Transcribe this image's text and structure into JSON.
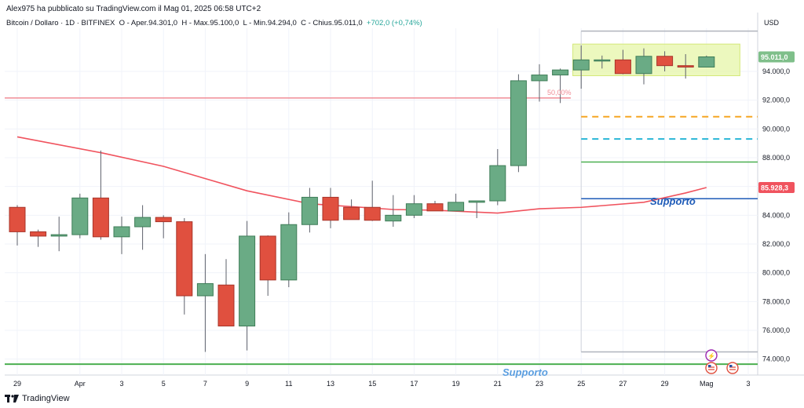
{
  "header": {
    "published": "Alex975 ha pubblicato su TradingView.com il Mag 01, 2025 06:58 UTC+2"
  },
  "legend": {
    "symbol": "Bitcoin / Dollaro · 1D · BITFINEX",
    "open": "O - Aper.94.301,0",
    "high": "H - Max.95.100,0",
    "low": "L - Min.94.294,0",
    "close": "C - Chius.95.011,0",
    "change": "+702,0 (+0,74%)"
  },
  "footer": {
    "brand": "TradingView"
  },
  "chart_data": {
    "type": "candlestick",
    "currency_label": "USD",
    "ylim": [
      73000,
      97500
    ],
    "yticks": [
      74000,
      76000,
      78000,
      80000,
      82000,
      84000,
      86000,
      88000,
      90000,
      92000,
      94000
    ],
    "ytick_labels": [
      "74.000,0",
      "76.000,0",
      "78.000,0",
      "80.000,0",
      "82.000,0",
      "84.000,0",
      "86.000,0",
      "88.000,0",
      "90.000,0",
      "92.000,0",
      "94.000,0"
    ],
    "xticks": [
      {
        "i": 0,
        "label": "29"
      },
      {
        "i": 3,
        "label": "Apr"
      },
      {
        "i": 5,
        "label": "3"
      },
      {
        "i": 7,
        "label": "5"
      },
      {
        "i": 9,
        "label": "7"
      },
      {
        "i": 11,
        "label": "9"
      },
      {
        "i": 13,
        "label": "11"
      },
      {
        "i": 15,
        "label": "13"
      },
      {
        "i": 17,
        "label": "15"
      },
      {
        "i": 19,
        "label": "17"
      },
      {
        "i": 21,
        "label": "19"
      },
      {
        "i": 23,
        "label": "21"
      },
      {
        "i": 25,
        "label": "23"
      },
      {
        "i": 27,
        "label": "25"
      },
      {
        "i": 29,
        "label": "27"
      },
      {
        "i": 31,
        "label": "29"
      },
      {
        "i": 33,
        "label": "Mag"
      },
      {
        "i": 35,
        "label": "3"
      }
    ],
    "candles": [
      {
        "o": 84550,
        "h": 84700,
        "l": 81900,
        "c": 82850
      },
      {
        "o": 82850,
        "h": 83000,
        "l": 81800,
        "c": 82550
      },
      {
        "o": 82550,
        "h": 83900,
        "l": 81500,
        "c": 82650
      },
      {
        "o": 82650,
        "h": 85500,
        "l": 82400,
        "c": 85200
      },
      {
        "o": 85200,
        "h": 88500,
        "l": 82300,
        "c": 82500
      },
      {
        "o": 82500,
        "h": 83900,
        "l": 81300,
        "c": 83200
      },
      {
        "o": 83200,
        "h": 84700,
        "l": 81600,
        "c": 83850
      },
      {
        "o": 83850,
        "h": 84000,
        "l": 82400,
        "c": 83550
      },
      {
        "o": 83550,
        "h": 83800,
        "l": 77100,
        "c": 78400
      },
      {
        "o": 78400,
        "h": 81300,
        "l": 74500,
        "c": 79250
      },
      {
        "o": 79150,
        "h": 80950,
        "l": 76300,
        "c": 76300
      },
      {
        "o": 76300,
        "h": 83600,
        "l": 74600,
        "c": 82550
      },
      {
        "o": 82550,
        "h": 82600,
        "l": 78400,
        "c": 79500
      },
      {
        "o": 79500,
        "h": 84200,
        "l": 79000,
        "c": 83350
      },
      {
        "o": 83350,
        "h": 85900,
        "l": 82800,
        "c": 85250
      },
      {
        "o": 85250,
        "h": 85900,
        "l": 83100,
        "c": 83650
      },
      {
        "o": 84550,
        "h": 85100,
        "l": 83700,
        "c": 83700
      },
      {
        "o": 84550,
        "h": 86400,
        "l": 83600,
        "c": 83650
      },
      {
        "o": 83600,
        "h": 85400,
        "l": 83200,
        "c": 84000
      },
      {
        "o": 84000,
        "h": 85400,
        "l": 83800,
        "c": 84800
      },
      {
        "o": 84800,
        "h": 85000,
        "l": 84300,
        "c": 84300
      },
      {
        "o": 84300,
        "h": 85500,
        "l": 84300,
        "c": 84900
      },
      {
        "o": 84900,
        "h": 85000,
        "l": 83800,
        "c": 85000
      },
      {
        "o": 85000,
        "h": 88600,
        "l": 84700,
        "c": 87450
      },
      {
        "o": 87450,
        "h": 93800,
        "l": 87000,
        "c": 93350
      },
      {
        "o": 93350,
        "h": 94500,
        "l": 91900,
        "c": 93750
      },
      {
        "o": 93750,
        "h": 94200,
        "l": 91800,
        "c": 94100
      },
      {
        "o": 94100,
        "h": 95800,
        "l": 92800,
        "c": 94800
      },
      {
        "o": 94750,
        "h": 95100,
        "l": 94200,
        "c": 94800
      },
      {
        "o": 94800,
        "h": 95500,
        "l": 93800,
        "c": 93850
      },
      {
        "o": 93850,
        "h": 95600,
        "l": 93100,
        "c": 95050
      },
      {
        "o": 95050,
        "h": 95400,
        "l": 94000,
        "c": 94400
      },
      {
        "o": 94400,
        "h": 95200,
        "l": 93500,
        "c": 94300
      },
      {
        "o": 94300,
        "h": 95100,
        "l": 94294,
        "c": 95011
      }
    ],
    "moving_average": {
      "color": "#f0535e",
      "points": [
        {
          "i": 0,
          "v": 89450
        },
        {
          "i": 4,
          "v": 88350
        },
        {
          "i": 7,
          "v": 87400
        },
        {
          "i": 11,
          "v": 85700
        },
        {
          "i": 14,
          "v": 84800
        },
        {
          "i": 18,
          "v": 84400
        },
        {
          "i": 20,
          "v": 84350
        },
        {
          "i": 23,
          "v": 84150
        },
        {
          "i": 25,
          "v": 84450
        },
        {
          "i": 27,
          "v": 84550
        },
        {
          "i": 30,
          "v": 84900
        },
        {
          "i": 32,
          "v": 85550
        },
        {
          "i": 33,
          "v": 85928
        }
      ]
    },
    "levels": [
      {
        "name": "fib-50",
        "value": 92150,
        "color": "#f08c96",
        "style": "solid",
        "from_i": -1,
        "to_i": 26.5,
        "label": "50,00%"
      },
      {
        "name": "orange-dashed",
        "value": 90850,
        "color": "#f5a623",
        "style": "dashed",
        "from_i": 27,
        "to_i": 35.5
      },
      {
        "name": "blue-dashed",
        "value": 89300,
        "color": "#29b6d6",
        "style": "dashed",
        "from_i": 27,
        "to_i": 35.5
      },
      {
        "name": "green-line",
        "value": 87700,
        "color": "#4caf50",
        "style": "solid",
        "from_i": 27,
        "to_i": 35.5
      },
      {
        "name": "support-blue",
        "value": 85150,
        "color": "#1e5bb8",
        "style": "solid",
        "from_i": 27,
        "to_i": 35.5,
        "label": "Supporto"
      },
      {
        "name": "support-green",
        "value": 73650,
        "color": "#4caf50",
        "style": "solid",
        "from_i": -1,
        "to_i": 35.5,
        "label": "Supporto"
      },
      {
        "name": "range-top",
        "value": 96800,
        "color": "#b0b4bd",
        "style": "solid",
        "from_i": 27,
        "to_i": 35.5
      },
      {
        "name": "range-bottom",
        "value": 74500,
        "color": "#b0b4bd",
        "style": "solid",
        "from_i": 27,
        "to_i": 35.5
      }
    ],
    "range_box": {
      "from_i": 26.6,
      "to_i": 34.6,
      "top": 95900,
      "bottom": 93700,
      "color": "#e6f5a8"
    },
    "price_labels": [
      {
        "value": 95011,
        "text": "95.011,0",
        "bg": "#7fbf8a"
      },
      {
        "value": 85928,
        "text": "85.928,3",
        "bg": "#f0535e"
      }
    ]
  }
}
